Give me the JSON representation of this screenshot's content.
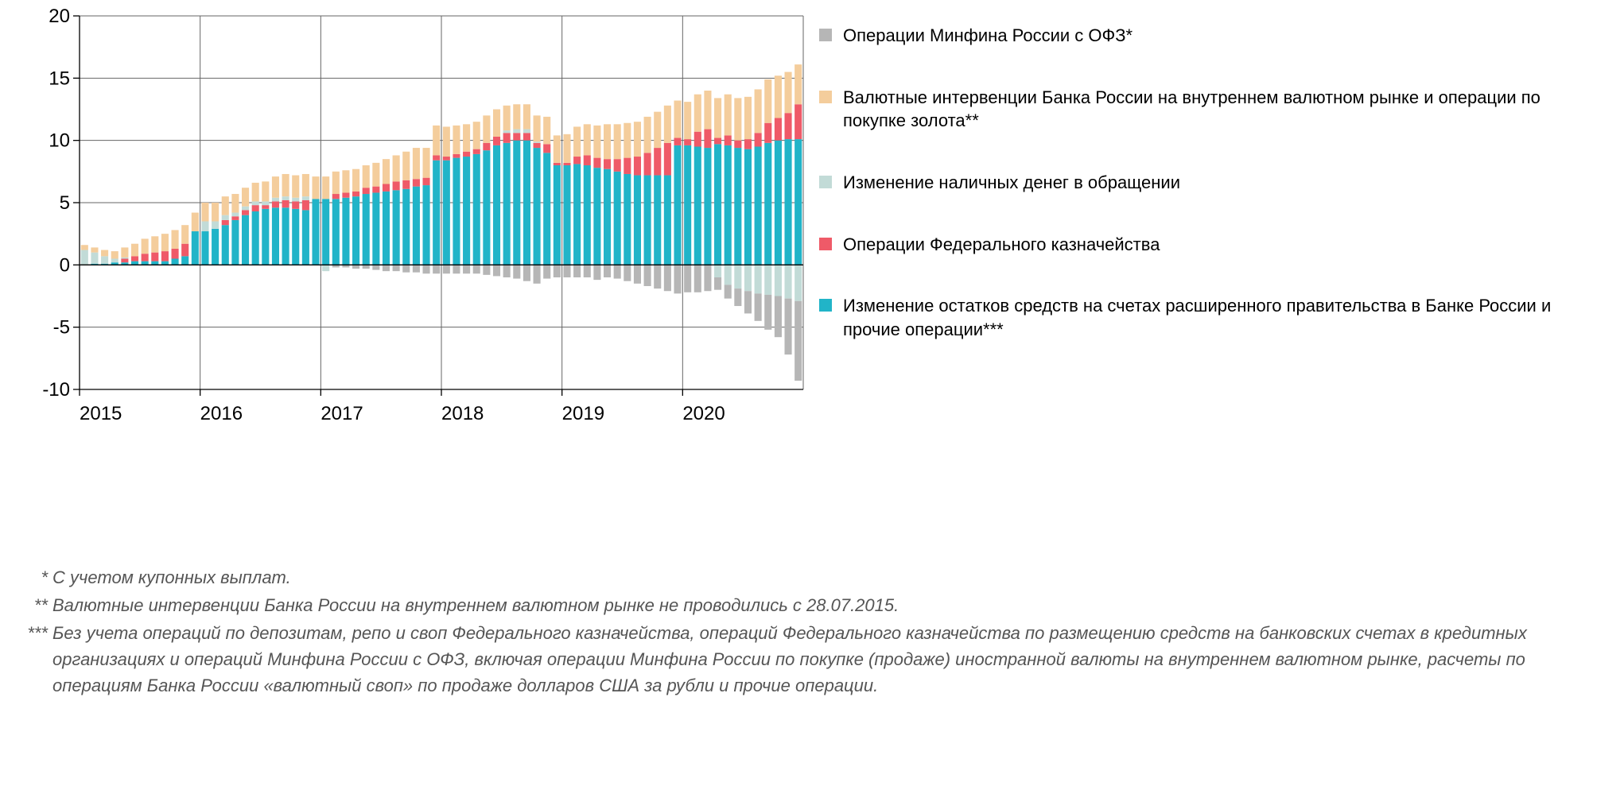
{
  "chart": {
    "type": "stacked-bar",
    "background_color": "#ffffff",
    "grid_color": "#666666",
    "axis_color": "#000000",
    "axis_line_width": 1.3,
    "months_per_year": 12,
    "years": [
      "2015",
      "2016",
      "2017",
      "2018",
      "2019",
      "2020"
    ],
    "y": {
      "min": -10,
      "max": 20,
      "ticks": [
        -10,
        -5,
        0,
        5,
        10,
        15,
        20
      ],
      "tick_fontsize": 24,
      "tick_color": "#000000"
    },
    "x_tick_fontsize": 24,
    "bar_gap_ratio": 0.28,
    "series": [
      {
        "key": "ofz",
        "color": "#b6b6b6",
        "label": "Операции Минфина России с ОФЗ*",
        "values": [
          0,
          0,
          0,
          0,
          0,
          0,
          0,
          0,
          0,
          0,
          0,
          0,
          0,
          0,
          0,
          0,
          0,
          0,
          0,
          0,
          0,
          0,
          0,
          0,
          0,
          -0.2,
          -0.2,
          -0.3,
          -0.3,
          -0.4,
          -0.5,
          -0.5,
          -0.6,
          -0.6,
          -0.7,
          -0.7,
          -0.7,
          -0.7,
          -0.7,
          -0.7,
          -0.8,
          -0.9,
          -1.0,
          -1.1,
          -1.3,
          -1.5,
          -1.1,
          -1.0,
          -1.0,
          -1.0,
          -1.0,
          -1.2,
          -1.0,
          -1.1,
          -1.3,
          -1.5,
          -1.7,
          -1.9,
          -2.1,
          -2.3,
          -2.2,
          -2.2,
          -2.1,
          -1.0,
          -1.1,
          -1.4,
          -1.8,
          -2.2,
          -2.8,
          -3.3,
          -4.5,
          -6.4
        ]
      },
      {
        "key": "fx_gold",
        "color": "#f4cd9c",
        "label": "Валютные интервенции Банка России на внутреннем валютном рынке и операции по покупке золота**",
        "values": [
          0.4,
          0.4,
          0.5,
          0.6,
          0.8,
          1.0,
          1.2,
          1.3,
          1.4,
          1.5,
          1.5,
          1.5,
          1.5,
          1.5,
          1.5,
          1.5,
          1.5,
          1.5,
          1.6,
          1.7,
          1.8,
          1.8,
          1.8,
          1.8,
          1.8,
          1.8,
          1.8,
          1.8,
          1.8,
          1.9,
          2.0,
          2.1,
          2.3,
          2.5,
          2.4,
          2.4,
          2.4,
          2.3,
          2.2,
          2.2,
          2.2,
          2.2,
          2.0,
          2.0,
          2.0,
          2.1,
          2.2,
          2.2,
          2.3,
          2.4,
          2.5,
          2.6,
          2.8,
          2.8,
          2.8,
          2.8,
          2.9,
          2.9,
          3.0,
          3.0,
          3.0,
          3.0,
          3.1,
          3.2,
          3.3,
          3.4,
          3.4,
          3.5,
          3.5,
          3.4,
          3.3,
          3.2
        ]
      },
      {
        "key": "cash",
        "color": "#c2dbd7",
        "label": "Изменение наличных денег в обращении",
        "values": [
          1.2,
          0.9,
          0.6,
          0.3,
          0.1,
          0.0,
          0.0,
          0.0,
          0.0,
          0.0,
          0.0,
          0.0,
          0.8,
          0.6,
          0.4,
          0.3,
          0.3,
          0.3,
          0.3,
          0.3,
          0.3,
          0.3,
          0.3,
          0.0,
          -0.5,
          0.0,
          0.0,
          0.0,
          0.0,
          0.0,
          0.0,
          0.0,
          0.0,
          0.0,
          0.0,
          0.0,
          0.0,
          0.0,
          0.0,
          0.0,
          0.0,
          0.0,
          0.2,
          0.3,
          0.3,
          0.1,
          0.0,
          0.0,
          0.0,
          0.0,
          0.0,
          0.0,
          0.0,
          0.0,
          0.0,
          0.0,
          0.0,
          0.0,
          0.0,
          0.0,
          0.0,
          0.0,
          0.0,
          -1.0,
          -1.6,
          -1.9,
          -2.1,
          -2.3,
          -2.4,
          -2.5,
          -2.7,
          -2.9
        ]
      },
      {
        "key": "treasury",
        "color": "#ef5a68",
        "label": "Операции Федерального казначейства",
        "values": [
          0,
          0,
          0,
          0,
          0.3,
          0.4,
          0.6,
          0.7,
          0.8,
          0.8,
          1.0,
          0.0,
          0,
          0,
          0.4,
          0.3,
          0.4,
          0.5,
          0.3,
          0.5,
          0.6,
          0.6,
          0.8,
          0.0,
          0,
          0.4,
          0.4,
          0.4,
          0.5,
          0.5,
          0.6,
          0.7,
          0.7,
          0.6,
          0.6,
          0.4,
          0.3,
          0.3,
          0.4,
          0.4,
          0.6,
          0.7,
          0.8,
          0.6,
          0.6,
          0.4,
          0.7,
          0.2,
          0.2,
          0.6,
          0.8,
          0.8,
          0.8,
          1.0,
          1.3,
          1.5,
          1.8,
          2.2,
          2.6,
          0.6,
          0.5,
          1.2,
          1.5,
          0.5,
          0.8,
          0.6,
          0.8,
          1.1,
          1.6,
          1.8,
          2.1,
          2.8
        ]
      },
      {
        "key": "gov_accounts",
        "color": "#21b4c8",
        "label": "Изменение остатков средств на счетах расширенного правительства в Банке России и прочие операции***",
        "values": [
          0.0,
          0.1,
          0.1,
          0.2,
          0.2,
          0.3,
          0.3,
          0.3,
          0.3,
          0.5,
          0.7,
          2.7,
          2.7,
          2.9,
          3.2,
          3.6,
          4.0,
          4.3,
          4.5,
          4.6,
          4.6,
          4.5,
          4.4,
          5.3,
          5.3,
          5.3,
          5.4,
          5.5,
          5.7,
          5.8,
          5.9,
          6.0,
          6.1,
          6.3,
          6.4,
          8.4,
          8.4,
          8.6,
          8.7,
          8.9,
          9.2,
          9.6,
          9.8,
          10.0,
          10.0,
          9.4,
          9.0,
          8.0,
          8.0,
          8.1,
          8.0,
          7.8,
          7.7,
          7.5,
          7.3,
          7.2,
          7.2,
          7.2,
          7.2,
          9.6,
          9.6,
          9.5,
          9.4,
          9.7,
          9.6,
          9.4,
          9.3,
          9.5,
          9.8,
          10.0,
          10.1,
          10.1
        ]
      }
    ],
    "legend_order": [
      "ofz",
      "fx_gold",
      "cash",
      "treasury",
      "gov_accounts"
    ],
    "stack_order_pos": [
      "gov_accounts",
      "treasury",
      "cash",
      "fx_gold",
      "ofz"
    ],
    "stack_order_neg": [
      "cash",
      "ofz"
    ]
  },
  "footnotes": [
    {
      "marker": "*",
      "text": "С учетом купонных выплат."
    },
    {
      "marker": "**",
      "text": "Валютные интервенции Банка России на внутреннем валютном рынке не проводились с 28.07.2015."
    },
    {
      "marker": "***",
      "text": "Без учета операций по депозитам, репо и своп Федерального казначейства, операций Федерального казначейства по размещению средств на банковских счетах в кредитных организациях и операций Минфина России с ОФЗ, включая операции Минфина России по покупке (продаже) иностранной валюты на внутреннем валютном рынке, расчеты по операциям Банка России «валютный своп» по продаже долларов США за рубли и прочие операции."
    }
  ],
  "footnote_style": {
    "fontsize": 22,
    "color": "#555555",
    "italic": true
  },
  "legend_style": {
    "fontsize": 22,
    "swatch_size": 16,
    "text_color": "#000000"
  }
}
